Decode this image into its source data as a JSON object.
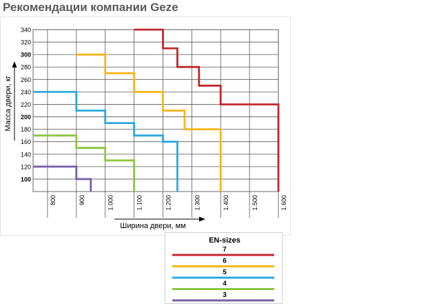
{
  "title": "Рекомендации компании Geze",
  "chart_data": {
    "type": "line",
    "xlabel": "Ширина двери, мм",
    "ylabel": "Масса двери, кг",
    "xlim": [
      750,
      1600
    ],
    "ylim": [
      80,
      340
    ],
    "x_ticks": [
      {
        "value": 800,
        "label": "800"
      },
      {
        "value": 900,
        "label": "900"
      },
      {
        "value": 1000,
        "label": "1.000"
      },
      {
        "value": 1100,
        "label": "1.100"
      },
      {
        "value": 1200,
        "label": "1.200"
      },
      {
        "value": 1300,
        "label": "1.300"
      },
      {
        "value": 1400,
        "label": "1.400"
      },
      {
        "value": 1500,
        "label": "1.500"
      },
      {
        "value": 1600,
        "label": "1.600"
      }
    ],
    "y_ticks": [
      {
        "value": 100,
        "label": "100",
        "bold": true
      },
      {
        "value": 120,
        "label": "120",
        "bold": false
      },
      {
        "value": 140,
        "label": "140",
        "bold": false
      },
      {
        "value": 160,
        "label": "160",
        "bold": false
      },
      {
        "value": 180,
        "label": "180",
        "bold": false
      },
      {
        "value": 200,
        "label": "200",
        "bold": true
      },
      {
        "value": 220,
        "label": "220",
        "bold": false
      },
      {
        "value": 240,
        "label": "240",
        "bold": false
      },
      {
        "value": 260,
        "label": "260",
        "bold": false
      },
      {
        "value": 280,
        "label": "280",
        "bold": false
      },
      {
        "value": 300,
        "label": "300",
        "bold": true
      },
      {
        "value": 320,
        "label": "320",
        "bold": false
      },
      {
        "value": 340,
        "label": "340",
        "bold": false
      }
    ],
    "grid": true,
    "legend_title": "EN-sizes",
    "legend_position": "bottom",
    "series": [
      {
        "name": "7",
        "color": "#c1272d",
        "points": [
          [
            1100,
            340
          ],
          [
            1200,
            340
          ],
          [
            1200,
            310
          ],
          [
            1250,
            310
          ],
          [
            1250,
            280
          ],
          [
            1325,
            280
          ],
          [
            1325,
            250
          ],
          [
            1400,
            250
          ],
          [
            1400,
            220
          ],
          [
            1600,
            220
          ],
          [
            1600,
            80
          ]
        ]
      },
      {
        "name": "6",
        "color": "#f7b519",
        "points": [
          [
            900,
            300
          ],
          [
            1000,
            300
          ],
          [
            1000,
            270
          ],
          [
            1100,
            270
          ],
          [
            1100,
            240
          ],
          [
            1200,
            240
          ],
          [
            1200,
            210
          ],
          [
            1275,
            210
          ],
          [
            1275,
            180
          ],
          [
            1400,
            180
          ],
          [
            1400,
            80
          ]
        ]
      },
      {
        "name": "5",
        "color": "#29a9e0",
        "points": [
          [
            750,
            240
          ],
          [
            900,
            240
          ],
          [
            900,
            210
          ],
          [
            1000,
            210
          ],
          [
            1000,
            190
          ],
          [
            1100,
            190
          ],
          [
            1100,
            170
          ],
          [
            1200,
            170
          ],
          [
            1200,
            160
          ],
          [
            1250,
            160
          ],
          [
            1250,
            80
          ]
        ]
      },
      {
        "name": "4",
        "color": "#8cc63f",
        "points": [
          [
            750,
            170
          ],
          [
            900,
            170
          ],
          [
            900,
            150
          ],
          [
            1000,
            150
          ],
          [
            1000,
            130
          ],
          [
            1100,
            130
          ],
          [
            1100,
            80
          ]
        ]
      },
      {
        "name": "3",
        "color": "#7b5ea7",
        "points": [
          [
            750,
            120
          ],
          [
            900,
            120
          ],
          [
            900,
            100
          ],
          [
            950,
            100
          ],
          [
            950,
            80
          ]
        ]
      }
    ]
  }
}
